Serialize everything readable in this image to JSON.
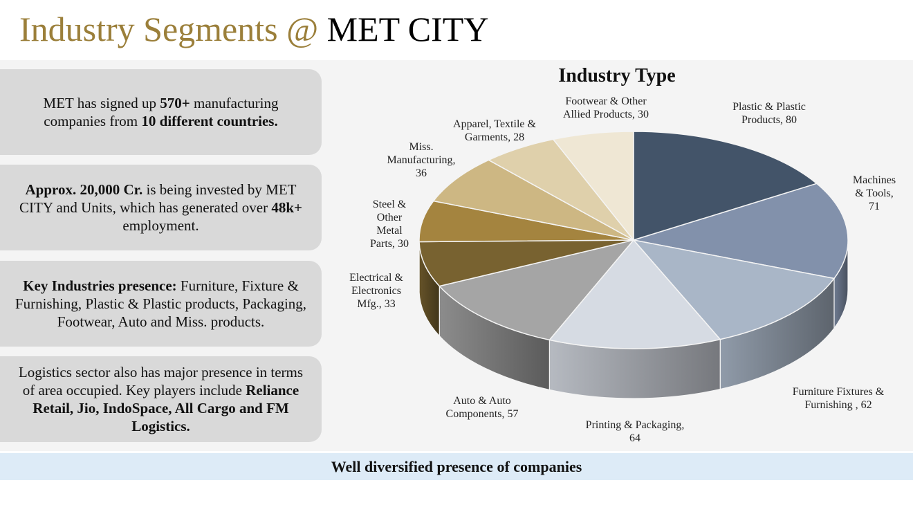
{
  "header": {
    "title_part1": "Industry Segments @ ",
    "title_part2": "MET CITY",
    "title_part1_color": "#9b7f3a"
  },
  "info_boxes": [
    {
      "segments": [
        {
          "text": "MET has signed up ",
          "bold": false
        },
        {
          "text": "570+",
          "bold": true
        },
        {
          "text": " manufacturing companies from ",
          "bold": false
        },
        {
          "text": "10 different countries.",
          "bold": true
        }
      ]
    },
    {
      "segments": [
        {
          "text": "Approx. 20,000 Cr.",
          "bold": true
        },
        {
          "text": " is being invested by MET CITY and Units, which has generated over ",
          "bold": false
        },
        {
          "text": "48k+",
          "bold": true
        },
        {
          "text": " employment.",
          "bold": false
        }
      ]
    },
    {
      "segments": [
        {
          "text": "Key Industries presence:",
          "bold": true
        },
        {
          "text": " Furniture, Fixture & Furnishing, Plastic & Plastic products, Packaging, Footwear, Auto and Miss. products.",
          "bold": false
        }
      ]
    },
    {
      "segments": [
        {
          "text": "Logistics sector also has major presence in terms of area occupied. Key players include ",
          "bold": false
        },
        {
          "text": "Reliance Retail, Jio, IndoSpace, All Cargo and FM Logistics.",
          "bold": true
        }
      ]
    }
  ],
  "footer": {
    "banner": "Well diversified presence of companies"
  },
  "chart_data": {
    "type": "pie",
    "style": "3d",
    "title": "Industry Type",
    "categories": [
      "Plastic & Plastic Products",
      "Machines & Tools",
      "Furniture Fixtures & Furnishing ",
      "Printing & Packaging",
      "Auto & Auto Components",
      "Electrical & Electronics Mfg.",
      "Steel & Other Metal Parts",
      "Miss. Manufacturing",
      "Apparel, Textile & Garments",
      "Footwear & Other Allied Products"
    ],
    "values": [
      80,
      71,
      62,
      64,
      57,
      33,
      30,
      36,
      28,
      30
    ],
    "labels": [
      [
        "Plastic & Plastic",
        "Products, 80"
      ],
      [
        "Machines",
        "& Tools,",
        "71"
      ],
      [
        "Furniture Fixtures &",
        "Furnishing , 62"
      ],
      [
        "Printing & Packaging,",
        "64"
      ],
      [
        "Auto & Auto",
        "Components, 57"
      ],
      [
        "Electrical &",
        "Electronics",
        "Mfg., 33"
      ],
      [
        "Steel &",
        "Other",
        "Metal",
        "Parts, 30"
      ],
      [
        "Miss.",
        "Manufacturing,",
        "36"
      ],
      [
        "Apparel, Textile &",
        "Garments, 28"
      ],
      [
        "Footwear & Other",
        "Allied Products, 30"
      ]
    ],
    "colors": [
      "#435469",
      "#8291ab",
      "#a9b6c7",
      "#d6dbe3",
      "#a5a5a5",
      "#786230",
      "#a4843f",
      "#cdb783",
      "#dfd0ab",
      "#efe7d4"
    ],
    "legend": "none"
  }
}
